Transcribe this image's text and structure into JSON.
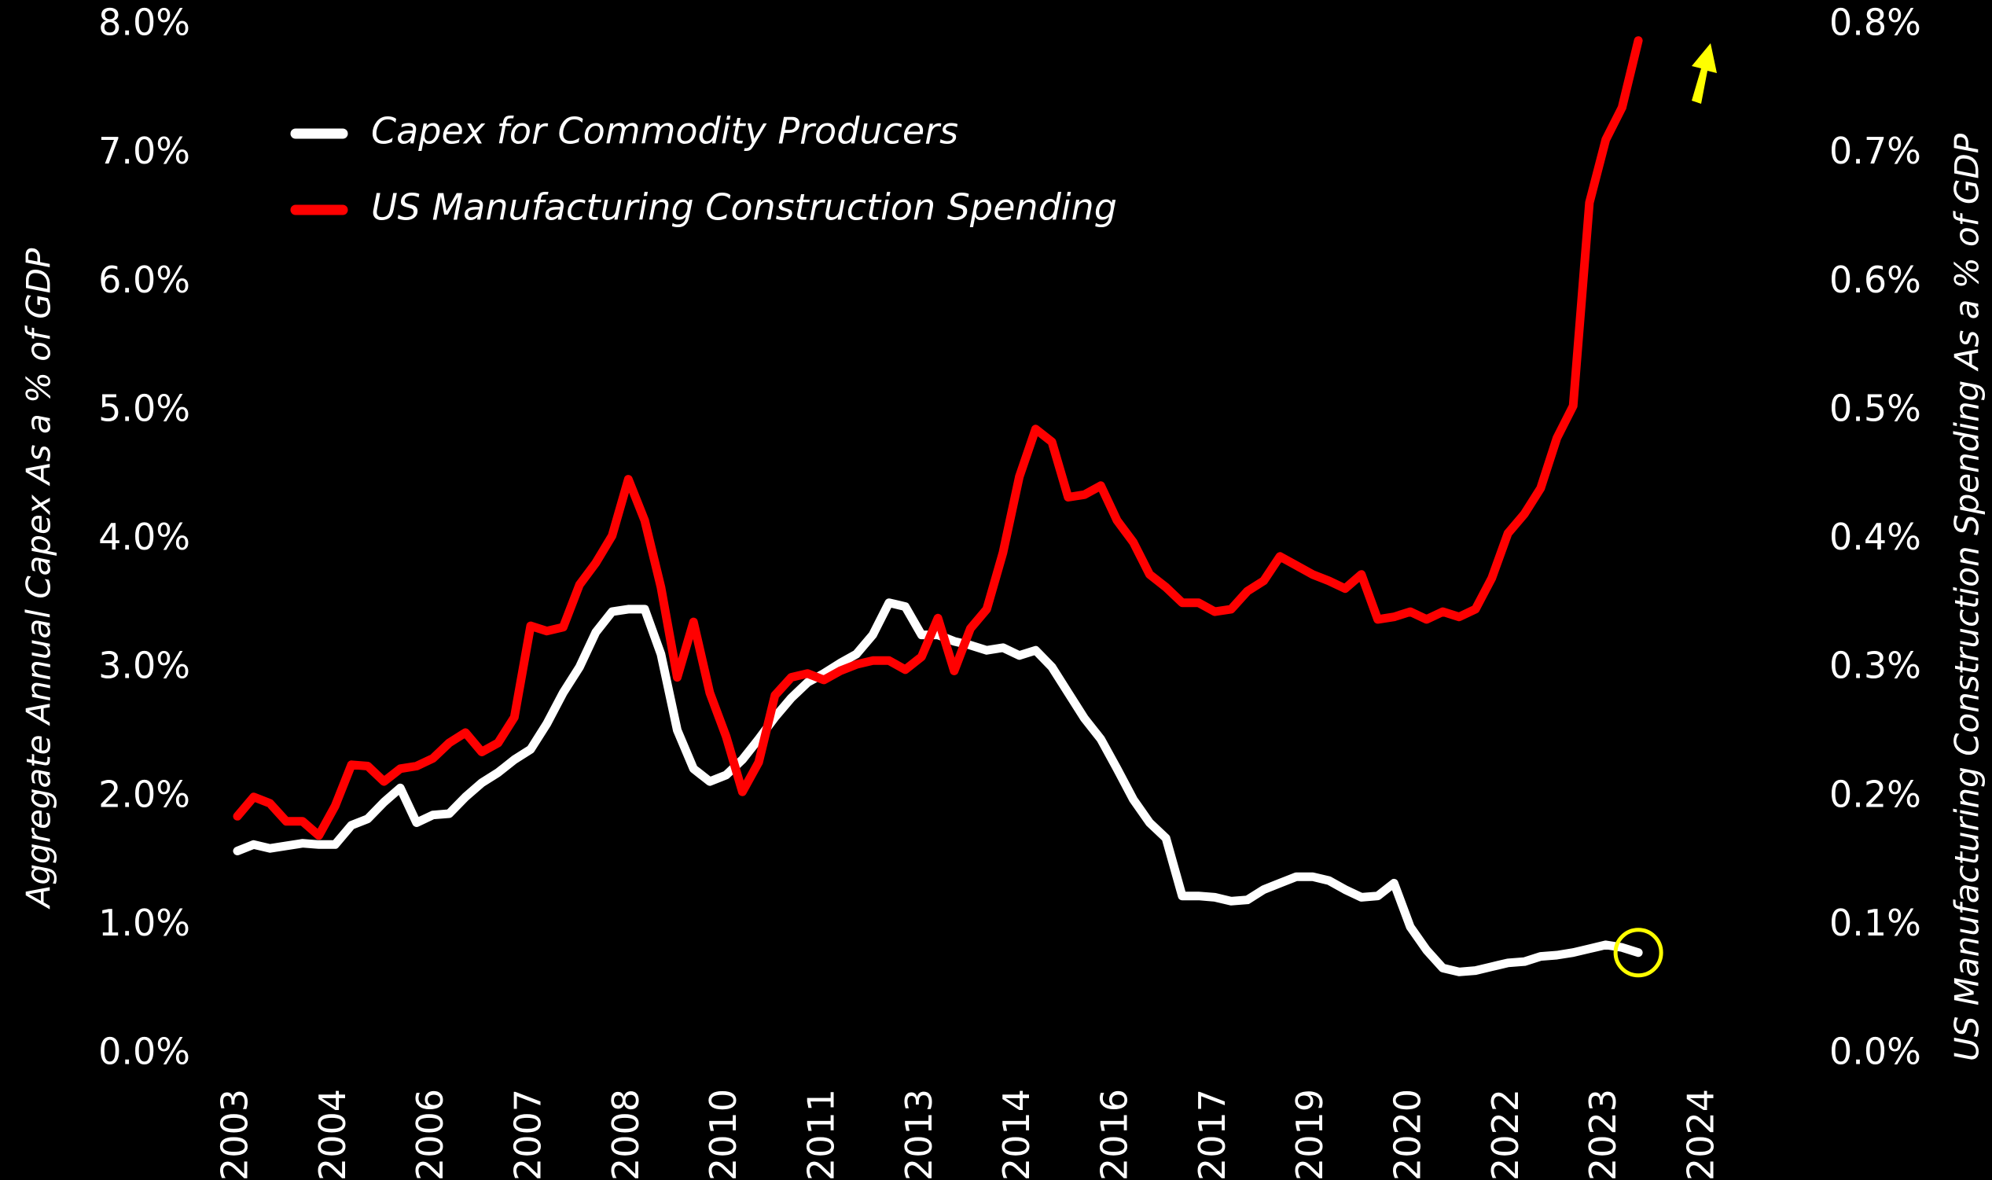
{
  "chart_data": {
    "type": "line",
    "categories": [
      "2003",
      null,
      null,
      null,
      null,
      null,
      "2004",
      null,
      null,
      null,
      null,
      null,
      "2006",
      null,
      null,
      null,
      null,
      null,
      "2007",
      null,
      null,
      null,
      null,
      null,
      "2008",
      null,
      null,
      null,
      null,
      null,
      "2010",
      null,
      null,
      null,
      null,
      null,
      "2011",
      null,
      null,
      null,
      null,
      null,
      "2013",
      null,
      null,
      null,
      null,
      null,
      "2014",
      null,
      null,
      null,
      null,
      null,
      "2016",
      null,
      null,
      null,
      null,
      null,
      "2017",
      null,
      null,
      null,
      null,
      null,
      "2019",
      null,
      null,
      null,
      null,
      null,
      "2020",
      null,
      null,
      null,
      null,
      null,
      "2022",
      null,
      null,
      null,
      null,
      null,
      "2023",
      null,
      null,
      null,
      null,
      null,
      "2024"
    ],
    "series": [
      {
        "name": "Capex for Commodity Producers",
        "color": "#ffffff",
        "values": [
          1.58,
          1.63,
          1.6,
          1.62,
          1.64,
          1.63,
          1.63,
          1.78,
          1.83,
          1.96,
          2.07,
          1.8,
          1.86,
          1.87,
          2.0,
          2.11,
          2.19,
          2.29,
          2.37,
          2.57,
          2.81,
          3.01,
          3.28,
          3.44,
          3.46,
          3.46,
          3.11,
          2.52,
          2.22,
          2.12,
          2.17,
          2.29,
          2.45,
          2.62,
          2.77,
          2.89,
          2.96,
          3.04,
          3.11,
          3.26,
          3.51,
          3.48,
          3.26,
          3.26,
          3.21,
          3.18,
          3.14,
          3.16,
          3.1,
          3.14,
          3.01,
          2.81,
          2.61,
          2.45,
          2.22,
          1.98,
          1.8,
          1.68,
          1.23,
          1.23,
          1.22,
          1.19,
          1.2,
          1.28,
          1.33,
          1.38,
          1.38,
          1.35,
          1.28,
          1.22,
          1.23,
          1.33,
          0.99,
          0.81,
          0.67,
          0.64,
          0.65,
          0.68,
          0.71,
          0.72,
          0.76,
          0.77,
          0.79,
          0.82,
          0.85,
          0.83,
          0.79,
          null,
          null,
          null,
          null
        ]
      },
      {
        "name": "US Manufacturing Construction Spending",
        "color": "#ff0000",
        "axis": "y2",
        "values": [
          0.185,
          0.2,
          0.195,
          0.181,
          0.181,
          0.17,
          0.193,
          0.225,
          0.224,
          0.212,
          0.222,
          0.224,
          0.23,
          0.242,
          0.25,
          0.235,
          0.242,
          0.262,
          0.333,
          0.329,
          0.332,
          0.365,
          0.382,
          0.403,
          0.447,
          0.415,
          0.363,
          0.293,
          0.336,
          0.281,
          0.247,
          0.204,
          0.227,
          0.279,
          0.293,
          0.296,
          0.291,
          0.298,
          0.303,
          0.306,
          0.306,
          0.299,
          0.309,
          0.339,
          0.298,
          0.331,
          0.346,
          0.39,
          0.449,
          0.486,
          0.476,
          0.433,
          0.435,
          0.442,
          0.415,
          0.398,
          0.373,
          0.363,
          0.351,
          0.351,
          0.344,
          0.346,
          0.36,
          0.368,
          0.387,
          0.38,
          0.373,
          0.368,
          0.362,
          0.373,
          0.338,
          0.34,
          0.344,
          0.338,
          0.344,
          0.34,
          0.346,
          0.37,
          0.405,
          0.42,
          0.44,
          0.479,
          0.504,
          0.662,
          0.711,
          0.736,
          0.788,
          null,
          null,
          null,
          null
        ]
      }
    ],
    "ylabel": "Aggregate Annual Capex As a % of GDP",
    "y2label": "US Manufacturing Construction Spending As a % of GDP",
    "ylim": [
      0,
      8
    ],
    "yticks": [
      {
        "value": 0,
        "label": "0.0%"
      },
      {
        "value": 1,
        "label": "1.0%"
      },
      {
        "value": 2,
        "label": "2.0%"
      },
      {
        "value": 3,
        "label": "3.0%"
      },
      {
        "value": 4,
        "label": "4.0%"
      },
      {
        "value": 5,
        "label": "5.0%"
      },
      {
        "value": 6,
        "label": "6.0%"
      },
      {
        "value": 7,
        "label": "7.0%"
      },
      {
        "value": 8,
        "label": "8.0%"
      }
    ],
    "y2lim": [
      0,
      0.8
    ],
    "y2ticks": [
      {
        "value": 0,
        "label": "0.0%"
      },
      {
        "value": 0.1,
        "label": "0.1%"
      },
      {
        "value": 0.2,
        "label": "0.2%"
      },
      {
        "value": 0.3,
        "label": "0.3%"
      },
      {
        "value": 0.4,
        "label": "0.4%"
      },
      {
        "value": 0.5,
        "label": "0.5%"
      },
      {
        "value": 0.6,
        "label": "0.6%"
      },
      {
        "value": 0.7,
        "label": "0.7%"
      },
      {
        "value": 0.8,
        "label": "0.8%"
      }
    ],
    "grid": false,
    "legend": "top-left"
  }
}
